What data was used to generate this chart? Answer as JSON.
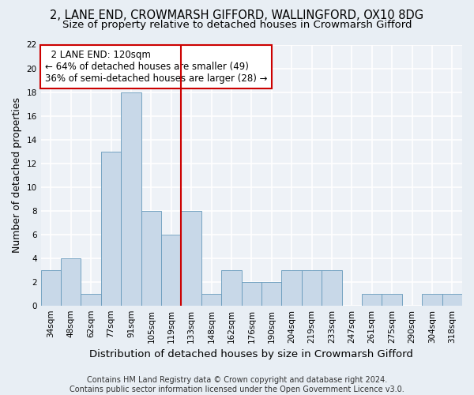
{
  "title_line1": "2, LANE END, CROWMARSH GIFFORD, WALLINGFORD, OX10 8DG",
  "title_line2": "Size of property relative to detached houses in Crowmarsh Gifford",
  "xlabel": "Distribution of detached houses by size in Crowmarsh Gifford",
  "ylabel": "Number of detached properties",
  "footer_line1": "Contains HM Land Registry data © Crown copyright and database right 2024.",
  "footer_line2": "Contains public sector information licensed under the Open Government Licence v3.0.",
  "bins": [
    "34sqm",
    "48sqm",
    "62sqm",
    "77sqm",
    "91sqm",
    "105sqm",
    "119sqm",
    "133sqm",
    "148sqm",
    "162sqm",
    "176sqm",
    "190sqm",
    "204sqm",
    "219sqm",
    "233sqm",
    "247sqm",
    "261sqm",
    "275sqm",
    "290sqm",
    "304sqm",
    "318sqm"
  ],
  "values": [
    3,
    4,
    1,
    13,
    18,
    8,
    6,
    8,
    1,
    3,
    2,
    2,
    3,
    3,
    3,
    0,
    1,
    1,
    0,
    1,
    1
  ],
  "bar_color": "#c8d8e8",
  "bar_edge_color": "#6699bb",
  "vline_x_index": 6.0,
  "vline_color": "#cc0000",
  "annotation_line1": "  2 LANE END: 120sqm",
  "annotation_line2": "← 64% of detached houses are smaller (49)",
  "annotation_line3": "36% of semi-detached houses are larger (28) →",
  "annotation_box_color": "#ffffff",
  "annotation_box_edge": "#cc0000",
  "ylim": [
    0,
    22
  ],
  "yticks": [
    0,
    2,
    4,
    6,
    8,
    10,
    12,
    14,
    16,
    18,
    20,
    22
  ],
  "bg_color": "#e8eef4",
  "plot_bg_color": "#eef2f7",
  "grid_color": "#ffffff",
  "title_fontsize": 10.5,
  "subtitle_fontsize": 9.5,
  "ylabel_fontsize": 9,
  "xlabel_fontsize": 9.5,
  "tick_fontsize": 7.5,
  "annotation_fontsize": 8.5,
  "footer_fontsize": 7
}
